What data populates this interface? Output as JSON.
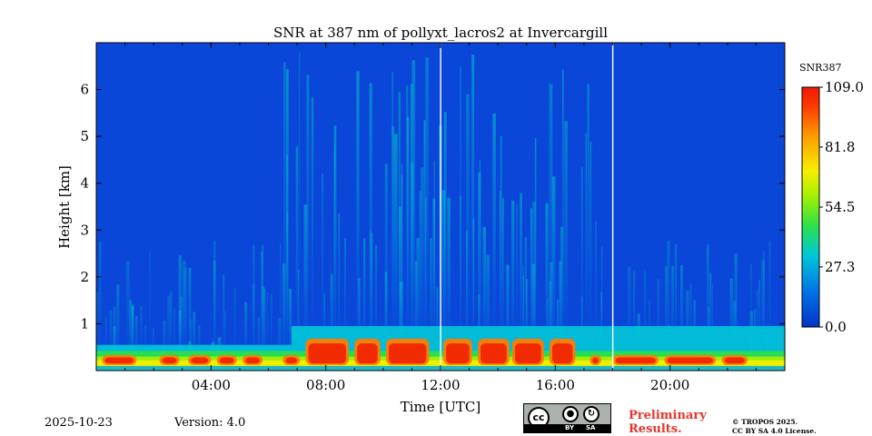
{
  "chart_data": {
    "type": "heatmap",
    "title": "SNR at 387 nm of pollyxt_lacros2 at Invercargill",
    "xlabel": "Time [UTC]",
    "ylabel": "Height [km]",
    "x_range_hours": [
      0,
      24
    ],
    "ylim": [
      0,
      7
    ],
    "x_ticks": [
      "04:00",
      "08:00",
      "12:00",
      "16:00",
      "20:00"
    ],
    "x_tick_hours": [
      4,
      8,
      12,
      16,
      20
    ],
    "y_ticks": [
      1,
      2,
      3,
      4,
      5,
      6
    ],
    "colorbar": {
      "label": "SNR387",
      "vmin": 0.0,
      "vmax": 109.0,
      "ticks": [
        "109.0",
        "81.8",
        "54.5",
        "27.3",
        "0.0"
      ],
      "tick_values": [
        109.0,
        81.8,
        54.5,
        27.3,
        0.0
      ],
      "colormap": "jet"
    },
    "gap_hours": [
      12,
      18
    ],
    "gap_color": "#ffffff"
  },
  "footer": {
    "date": "2025-10-23",
    "version": "Version: 4.0",
    "preliminary": [
      "Preliminary",
      "Results."
    ],
    "copyright": [
      "© TROPOS 2025.",
      "CC BY SA 4.0 License."
    ]
  },
  "license_badge": {
    "cc": "cc",
    "by": "BY",
    "sa": "SA"
  }
}
